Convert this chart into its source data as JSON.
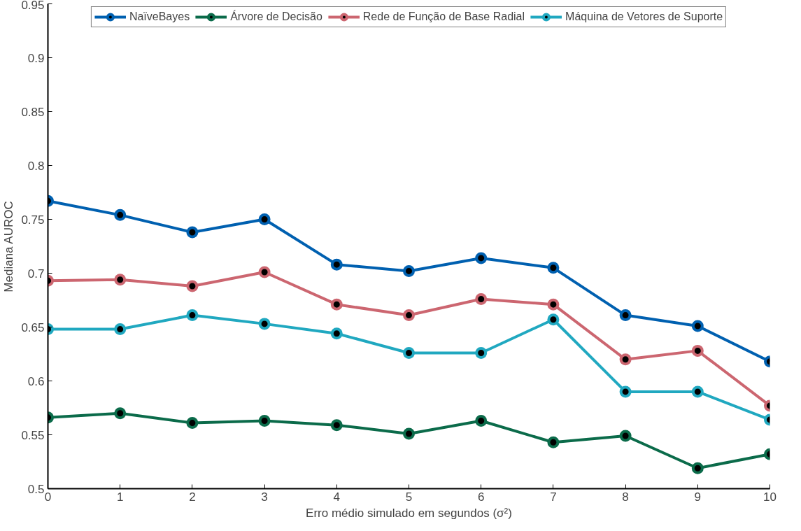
{
  "chart_data": {
    "type": "line",
    "xlabel": "Erro médio simulado em segundos (σ²)",
    "ylabel": "Mediana AUROC",
    "x": [
      0,
      1,
      2,
      3,
      4,
      5,
      6,
      7,
      8,
      9,
      10
    ],
    "xlim": [
      0,
      10
    ],
    "xticks": [
      0,
      1,
      2,
      3,
      4,
      5,
      6,
      7,
      8,
      9,
      10
    ],
    "ylim": [
      0.5,
      0.95
    ],
    "yticks": [
      0.5,
      0.55,
      0.6,
      0.65,
      0.7,
      0.75,
      0.8,
      0.85,
      0.9,
      0.95
    ],
    "grid": false,
    "legend": "top",
    "marker": "circle",
    "line_style": "solid",
    "series": [
      {
        "name": "NaïveBayes",
        "color": "#0060b0",
        "values": [
          0.767,
          0.754,
          0.738,
          0.75,
          0.708,
          0.702,
          0.714,
          0.705,
          0.661,
          0.651,
          0.618
        ]
      },
      {
        "name": "Árvore de Decisão",
        "color": "#0b6b4a",
        "values": [
          0.566,
          0.57,
          0.561,
          0.563,
          0.559,
          0.551,
          0.563,
          0.543,
          0.549,
          0.519,
          0.532
        ]
      },
      {
        "name": "Rede de Função de Base Radial",
        "color": "#cc6670",
        "values": [
          0.693,
          0.694,
          0.688,
          0.701,
          0.671,
          0.661,
          0.676,
          0.671,
          0.62,
          0.628,
          0.577
        ]
      },
      {
        "name": "Máquina de Vetores de Suporte",
        "color": "#20a8c0",
        "values": [
          0.648,
          0.648,
          0.661,
          0.653,
          0.644,
          0.626,
          0.626,
          0.657,
          0.59,
          0.59,
          0.564
        ]
      }
    ]
  }
}
